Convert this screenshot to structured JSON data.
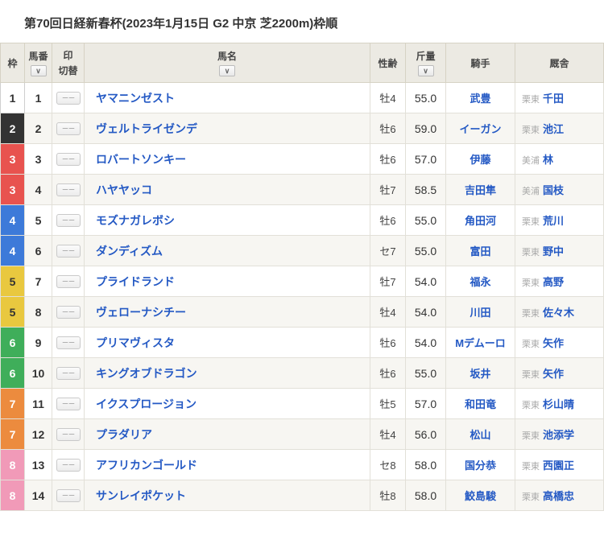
{
  "title": "第70回日経新春杯(2023年1月15日 G2 中京 芝2200m)枠順",
  "headers": {
    "waku": "枠",
    "num": "馬番",
    "mark": "印",
    "mark_sub": "切替",
    "horse": "馬名",
    "sexage": "性齢",
    "weight": "斤量",
    "jockey": "騎手",
    "stable": "厩舎"
  },
  "waku_colors": {
    "1": {
      "bg": "#ffffff",
      "fg": "#333333",
      "border": "#cfcfcf"
    },
    "2": {
      "bg": "#333333",
      "fg": "#ffffff"
    },
    "3": {
      "bg": "#e8534f",
      "fg": "#ffffff"
    },
    "4": {
      "bg": "#3d7ad9",
      "fg": "#ffffff"
    },
    "5": {
      "bg": "#e9c83f",
      "fg": "#333333"
    },
    "6": {
      "bg": "#3fae5a",
      "fg": "#ffffff"
    },
    "7": {
      "bg": "#ec8b3e",
      "fg": "#ffffff"
    },
    "8": {
      "bg": "#f19ab8",
      "fg": "#ffffff"
    }
  },
  "rows": [
    {
      "waku": "1",
      "num": "1",
      "horse": "ヤマニンゼスト",
      "sexage": "牡4",
      "weight": "55.0",
      "jockey": "武豊",
      "region": "栗東",
      "trainer": "千田"
    },
    {
      "waku": "2",
      "num": "2",
      "horse": "ヴェルトライゼンデ",
      "sexage": "牡6",
      "weight": "59.0",
      "jockey": "イーガン",
      "region": "栗東",
      "trainer": "池江"
    },
    {
      "waku": "3",
      "num": "3",
      "horse": "ロバートソンキー",
      "sexage": "牡6",
      "weight": "57.0",
      "jockey": "伊藤",
      "region": "美浦",
      "trainer": "林"
    },
    {
      "waku": "3",
      "num": "4",
      "horse": "ハヤヤッコ",
      "sexage": "牡7",
      "weight": "58.5",
      "jockey": "吉田隼",
      "region": "美浦",
      "trainer": "国枝"
    },
    {
      "waku": "4",
      "num": "5",
      "horse": "モズナガレボシ",
      "sexage": "牡6",
      "weight": "55.0",
      "jockey": "角田河",
      "region": "栗東",
      "trainer": "荒川"
    },
    {
      "waku": "4",
      "num": "6",
      "horse": "ダンディズム",
      "sexage": "セ7",
      "weight": "55.0",
      "jockey": "富田",
      "region": "栗東",
      "trainer": "野中"
    },
    {
      "waku": "5",
      "num": "7",
      "horse": "プライドランド",
      "sexage": "牡7",
      "weight": "54.0",
      "jockey": "福永",
      "region": "栗東",
      "trainer": "高野"
    },
    {
      "waku": "5",
      "num": "8",
      "horse": "ヴェローナシチー",
      "sexage": "牡4",
      "weight": "54.0",
      "jockey": "川田",
      "region": "栗東",
      "trainer": "佐々木"
    },
    {
      "waku": "6",
      "num": "9",
      "horse": "プリマヴィスタ",
      "sexage": "牡6",
      "weight": "54.0",
      "jockey": "Mデムーロ",
      "region": "栗東",
      "trainer": "矢作"
    },
    {
      "waku": "6",
      "num": "10",
      "horse": "キングオブドラゴン",
      "sexage": "牡6",
      "weight": "55.0",
      "jockey": "坂井",
      "region": "栗東",
      "trainer": "矢作"
    },
    {
      "waku": "7",
      "num": "11",
      "horse": "イクスプロージョン",
      "sexage": "牡5",
      "weight": "57.0",
      "jockey": "和田竜",
      "region": "栗東",
      "trainer": "杉山晴"
    },
    {
      "waku": "7",
      "num": "12",
      "horse": "プラダリア",
      "sexage": "牡4",
      "weight": "56.0",
      "jockey": "松山",
      "region": "栗東",
      "trainer": "池添学"
    },
    {
      "waku": "8",
      "num": "13",
      "horse": "アフリカンゴールド",
      "sexage": "セ8",
      "weight": "58.0",
      "jockey": "国分恭",
      "region": "栗東",
      "trainer": "西園正"
    },
    {
      "waku": "8",
      "num": "14",
      "horse": "サンレイポケット",
      "sexage": "牡8",
      "weight": "58.0",
      "jockey": "鮫島駿",
      "region": "栗東",
      "trainer": "高橋忠"
    }
  ]
}
